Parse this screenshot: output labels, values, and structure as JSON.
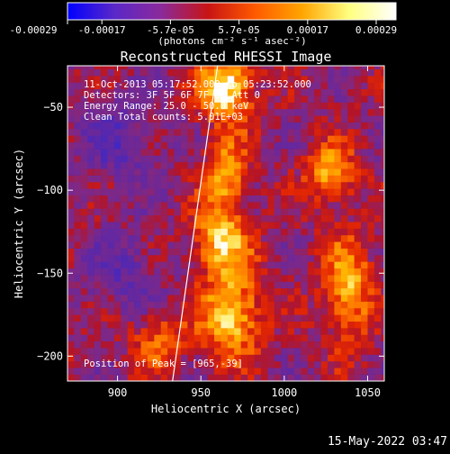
{
  "chart_data": {
    "type": "heatmap",
    "title": "Reconstructed RHESSI Image",
    "xlabel": "Heliocentric X (arcsec)",
    "ylabel": "Heliocentric Y (arcsec)",
    "xlim": [
      870,
      1060
    ],
    "ylim": [
      -215,
      -25
    ],
    "x_ticks": [
      900,
      950,
      1000,
      1050
    ],
    "y_ticks": [
      -50,
      -100,
      -150,
      -200
    ],
    "colorbar": {
      "unit_label": "(photons cm⁻² s⁻¹ asec⁻²)",
      "tick_labels": [
        "-0.00029",
        "-0.00017",
        "-5.7e-05",
        "5.7e-05",
        "0.00017",
        "0.00029"
      ],
      "range": [
        -0.00029,
        0.00029
      ],
      "colors": [
        "#0000ff",
        "#5a28c8",
        "#8b2a9a",
        "#c81414",
        "#ff5a00",
        "#ffa500",
        "#ffff80",
        "#ffffff"
      ]
    },
    "annotations": [
      "11-Oct-2013 05:17:52.000 to 05:23:52.000",
      "Detectors: 3F 5F 6F 7F 8F  Att 0",
      "Energy Range: 25.0 - 50.0 keV",
      "Clean     Total counts: 5.01E+03",
      "Position of Peak = [965,-39]"
    ],
    "limb_line": {
      "x": [
        933,
        960
      ],
      "y": [
        -215,
        -25
      ]
    },
    "sources": [
      {
        "x": 965,
        "y": -38,
        "amp": 1.0,
        "sigma_x": 11,
        "sigma_y": 14
      },
      {
        "x": 965,
        "y": -90,
        "amp": 0.7,
        "sigma_x": 9,
        "sigma_y": 14
      },
      {
        "x": 962,
        "y": -130,
        "amp": 0.75,
        "sigma_x": 12,
        "sigma_y": 14
      },
      {
        "x": 968,
        "y": -175,
        "amp": 0.85,
        "sigma_x": 12,
        "sigma_y": 18
      },
      {
        "x": 1028,
        "y": -90,
        "amp": 0.7,
        "sigma_x": 10,
        "sigma_y": 12
      },
      {
        "x": 1038,
        "y": -160,
        "amp": 0.7,
        "sigma_x": 10,
        "sigma_y": 22
      },
      {
        "x": 925,
        "y": -190,
        "amp": 0.45,
        "sigma_x": 12,
        "sigma_y": 12
      },
      {
        "x": 900,
        "y": -70,
        "amp": -0.35,
        "sigma_x": 18,
        "sigma_y": 18
      },
      {
        "x": 905,
        "y": -150,
        "amp": -0.3,
        "sigma_x": 16,
        "sigma_y": 18
      }
    ]
  },
  "footer": {
    "timestamp": "15-May-2022 03:47"
  }
}
